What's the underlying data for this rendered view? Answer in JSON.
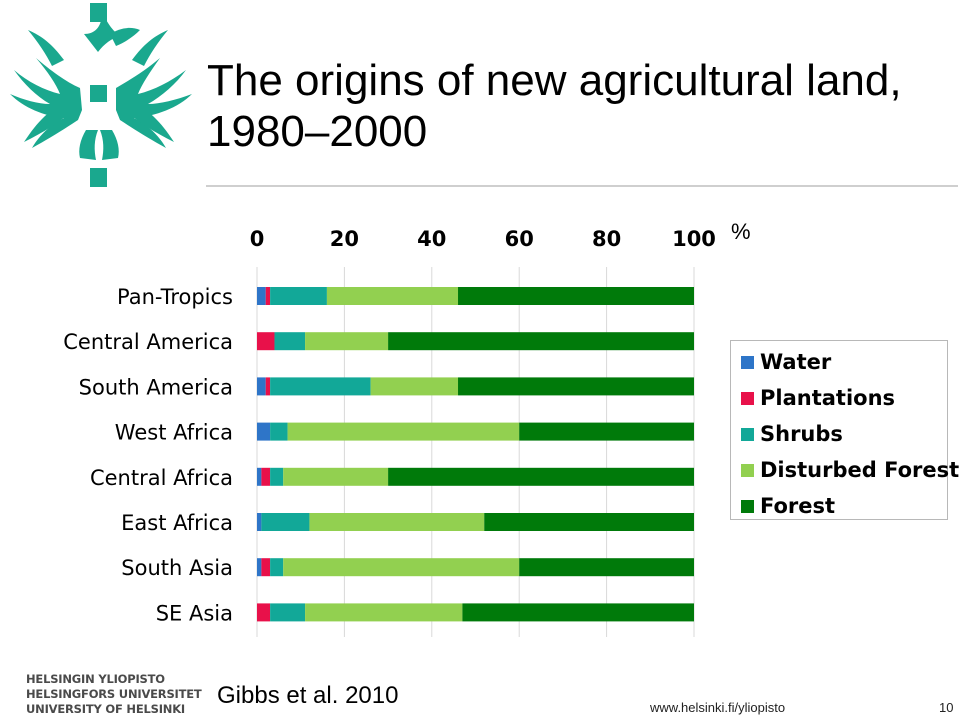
{
  "slide": {
    "title_line1": "The origins of new agricultural land,",
    "title_line2": "1980–2000",
    "citation": "Gibbs et al. 2010",
    "url": "www.helsinki.fi/yliopisto",
    "page_number": "10",
    "footer_logo_lines": [
      "HELSINGIN YLIOPISTO",
      "HELSINGFORS UNIVERSITET",
      "UNIVERSITY OF HELSINKI"
    ],
    "logo_icon": "university-of-helsinki-flame-cross-icon",
    "logo_color": "#1aa88e"
  },
  "chart_data": {
    "type": "bar",
    "orientation": "horizontal",
    "stacked": true,
    "title": "",
    "xlabel": "",
    "ylabel": "",
    "x_unit": "%",
    "xlim": [
      0,
      100
    ],
    "x_ticks": [
      "0",
      "20",
      "40",
      "60",
      "80",
      "100"
    ],
    "grid": "vertical",
    "legend_position": "right",
    "categories": [
      "Pan-Tropics",
      "Central America",
      "South America",
      "West Africa",
      "Central Africa",
      "East Africa",
      "South Asia",
      "SE Asia"
    ],
    "series": [
      {
        "name": "Water",
        "color": "#2e75c8",
        "values": [
          2,
          0,
          2,
          3,
          1,
          1,
          1,
          0
        ]
      },
      {
        "name": "Plantations",
        "color": "#e8114a",
        "values": [
          1,
          4,
          1,
          0,
          2,
          0,
          2,
          3
        ]
      },
      {
        "name": "Shrubs",
        "color": "#12a898",
        "values": [
          13,
          7,
          23,
          4,
          3,
          11,
          3,
          8
        ]
      },
      {
        "name": "Disturbed Forest",
        "color": "#92d050",
        "values": [
          30,
          19,
          20,
          53,
          24,
          40,
          54,
          36
        ]
      },
      {
        "name": "Forest",
        "color": "#007a0a",
        "values": [
          54,
          70,
          54,
          40,
          70,
          48,
          40,
          53
        ]
      }
    ]
  }
}
